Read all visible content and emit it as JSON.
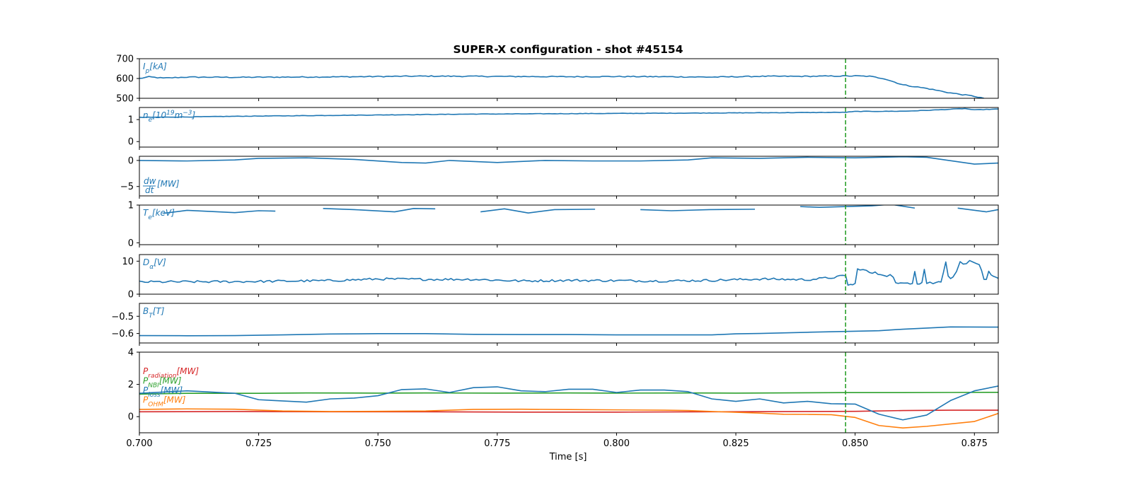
{
  "chart_data": {
    "type": "line",
    "title": "SUPER-X configuration - shot #45154",
    "xlabel": "Time [s]",
    "xlim": [
      0.7,
      0.88
    ],
    "xticks": [
      0.7,
      0.725,
      0.75,
      0.775,
      0.8,
      0.825,
      0.85,
      0.875
    ],
    "xtick_labels": [
      "0.700",
      "0.725",
      "0.750",
      "0.775",
      "0.800",
      "0.825",
      "0.850",
      "0.875"
    ],
    "marker_time": 0.848,
    "marker_color": "#2ca02c",
    "panels": [
      {
        "ylim": [
          500,
          700
        ],
        "yticks": [
          500,
          600,
          700
        ],
        "ytick_labels": [
          "500",
          "600",
          "700"
        ],
        "label": {
          "main": "I",
          "sub": "p",
          "sup": "",
          "rest": "[kA]",
          "color": "#1f77b4"
        },
        "series": [
          {
            "color": "#1f77b4",
            "style": "noisy",
            "noise": 2.5,
            "x": [
              0.7,
              0.702,
              0.705,
              0.71,
              0.72,
              0.73,
              0.74,
              0.75,
              0.76,
              0.77,
              0.78,
              0.79,
              0.8,
              0.81,
              0.82,
              0.83,
              0.84,
              0.845,
              0.85,
              0.853,
              0.856,
              0.86,
              0.865,
              0.87,
              0.875,
              0.877
            ],
            "y": [
              600,
              608,
              602,
              607,
              606,
              607,
              608,
              610,
              612,
              611,
              610,
              609,
              610,
              609,
              607,
              611,
              611,
              612,
              613,
              611,
              600,
              568,
              550,
              527,
              510,
              500
            ]
          }
        ]
      },
      {
        "ylim": [
          -0.25,
          1.55
        ],
        "yticks": [
          0,
          1
        ],
        "ytick_labels": [
          "0",
          "1"
        ],
        "label": {
          "main": "n",
          "sub": "e",
          "sup": "",
          "rest": "[10",
          "rest_sup": "19",
          "rest2": "m",
          "rest2_sup": "−3",
          "rest3": "]",
          "color": "#1f77b4"
        },
        "series": [
          {
            "color": "#1f77b4",
            "style": "noisy",
            "noise": 0.01,
            "x": [
              0.7,
              0.71,
              0.72,
              0.73,
              0.74,
              0.75,
              0.76,
              0.77,
              0.78,
              0.79,
              0.8,
              0.81,
              0.82,
              0.83,
              0.84,
              0.848,
              0.85,
              0.86,
              0.865,
              0.87,
              0.873,
              0.875,
              0.88
            ],
            "y": [
              1.1,
              1.12,
              1.15,
              1.17,
              1.19,
              1.21,
              1.23,
              1.25,
              1.26,
              1.27,
              1.28,
              1.29,
              1.3,
              1.31,
              1.32,
              1.33,
              1.37,
              1.38,
              1.42,
              1.47,
              1.5,
              1.44,
              1.48
            ]
          }
        ]
      },
      {
        "ylim": [
          -6.8,
          0.8
        ],
        "yticks": [
          -5,
          0
        ],
        "ytick_labels": [
          "−5",
          "0"
        ],
        "label": {
          "main": "dW/dt",
          "rest": "[MW]",
          "color": "#1f77b4",
          "fraction": true,
          "num": "dw",
          "den": "dt"
        },
        "series": [
          {
            "color": "#1f77b4",
            "style": "line",
            "x": [
              0.7,
              0.71,
              0.72,
              0.725,
              0.735,
              0.745,
              0.755,
              0.76,
              0.765,
              0.775,
              0.785,
              0.795,
              0.805,
              0.815,
              0.82,
              0.83,
              0.84,
              0.85,
              0.86,
              0.865,
              0.875,
              0.88
            ],
            "y": [
              0.0,
              -0.1,
              0.1,
              0.4,
              0.5,
              0.2,
              -0.4,
              -0.5,
              0.0,
              -0.4,
              0.0,
              -0.1,
              -0.1,
              0.1,
              0.5,
              0.4,
              0.6,
              0.5,
              0.7,
              0.6,
              -0.7,
              -0.5
            ]
          }
        ]
      },
      {
        "ylim": [
          -0.05,
          1.0
        ],
        "yticks": [
          0,
          1
        ],
        "ytick_labels": [
          "0",
          "1"
        ],
        "label": {
          "main": "T",
          "sub": "e",
          "sup": "",
          "rest": "[keV]",
          "color": "#1f77b4"
        },
        "series": [
          {
            "color": "#1f77b4",
            "style": "line",
            "x": [
              0.705,
              0.71,
              0.72,
              0.725,
              0.7285
            ],
            "y": [
              0.78,
              0.86,
              0.8,
              0.85,
              0.84
            ]
          },
          {
            "color": "#1f77b4",
            "style": "line",
            "x": [
              0.7385,
              0.745,
              0.7535,
              0.7575,
              0.762
            ],
            "y": [
              0.91,
              0.88,
              0.82,
              0.91,
              0.9
            ]
          },
          {
            "color": "#1f77b4",
            "style": "line",
            "x": [
              0.7715,
              0.7765,
              0.7815,
              0.787,
              0.7955
            ],
            "y": [
              0.82,
              0.9,
              0.79,
              0.88,
              0.89
            ]
          },
          {
            "color": "#1f77b4",
            "style": "line",
            "x": [
              0.805,
              0.8115,
              0.8195,
              0.829
            ],
            "y": [
              0.88,
              0.85,
              0.88,
              0.89
            ]
          },
          {
            "color": "#1f77b4",
            "style": "line",
            "x": [
              0.8385,
              0.8425,
              0.8535,
              0.8575,
              0.8625
            ],
            "y": [
              0.96,
              0.94,
              0.98,
              1.02,
              0.92
            ]
          },
          {
            "color": "#1f77b4",
            "style": "line",
            "x": [
              0.8715,
              0.8775,
              0.88
            ],
            "y": [
              0.92,
              0.82,
              0.88
            ]
          }
        ]
      },
      {
        "ylim": [
          0,
          12
        ],
        "yticks": [
          0,
          10
        ],
        "ytick_labels": [
          "0",
          "10"
        ],
        "label": {
          "main": "D",
          "sub": "α",
          "sup": "",
          "rest": "[V]",
          "color": "#1f77b4"
        },
        "series": [
          {
            "color": "#1f77b4",
            "style": "noisy",
            "noise": 0.35,
            "x": [
              0.7,
              0.72,
              0.74,
              0.75,
              0.76,
              0.77,
              0.78,
              0.79,
              0.8,
              0.81,
              0.82,
              0.83,
              0.84,
              0.845,
              0.848
            ],
            "y": [
              3.7,
              3.8,
              4.1,
              4.6,
              4.5,
              4.5,
              4.0,
              4.2,
              4.1,
              4.0,
              4.2,
              4.6,
              4.4,
              5.0,
              5.6
            ]
          },
          {
            "color": "#1f77b4",
            "style": "noisy",
            "noise": 0.5,
            "x": [
              0.848,
              0.8485,
              0.849,
              0.85,
              0.8505,
              0.851,
              0.853,
              0.856,
              0.858,
              0.8585,
              0.8595,
              0.861,
              0.862,
              0.8625,
              0.863,
              0.864,
              0.8645,
              0.865,
              0.867,
              0.868,
              0.869,
              0.8695,
              0.8705,
              0.872,
              0.874,
              0.876,
              0.877,
              0.8775,
              0.878,
              0.879,
              0.88
            ],
            "y": [
              5.6,
              3.0,
              2.8,
              3.0,
              7.5,
              7.8,
              6.5,
              6.0,
              5.5,
              3.2,
              3.0,
              3.5,
              3.6,
              7.2,
              3.4,
              3.5,
              7.6,
              3.4,
              3.4,
              4.0,
              10.0,
              5.5,
              4.8,
              9.5,
              9.8,
              9.2,
              4.2,
              4.0,
              6.5,
              5.0,
              4.8
            ]
          }
        ]
      },
      {
        "ylim": [
          -0.655,
          -0.425
        ],
        "yticks": [
          -0.6,
          -0.5
        ],
        "ytick_labels": [
          "−0.6",
          "−0.5"
        ],
        "label": {
          "main": "B",
          "sub": "T",
          "sup": "",
          "rest": "[T]",
          "color": "#1f77b4"
        },
        "series": [
          {
            "color": "#1f77b4",
            "style": "line",
            "x": [
              0.7,
              0.71,
              0.72,
              0.73,
              0.74,
              0.75,
              0.76,
              0.77,
              0.78,
              0.79,
              0.8,
              0.81,
              0.82,
              0.825,
              0.83,
              0.84,
              0.848,
              0.855,
              0.86,
              0.87,
              0.88
            ],
            "y": [
              -0.612,
              -0.613,
              -0.612,
              -0.608,
              -0.603,
              -0.601,
              -0.601,
              -0.605,
              -0.606,
              -0.606,
              -0.608,
              -0.608,
              -0.608,
              -0.602,
              -0.6,
              -0.593,
              -0.588,
              -0.584,
              -0.575,
              -0.562,
              -0.563
            ]
          }
        ]
      },
      {
        "ylim": [
          -1.0,
          4.0
        ],
        "yticks": [
          0,
          2,
          4
        ],
        "ytick_labels": [
          "0",
          "2",
          "4"
        ],
        "labels": [
          {
            "main": "P",
            "sub": "radiation",
            "rest": "[MW]",
            "color": "#d62728"
          },
          {
            "main": "P",
            "sub": "NBI",
            "rest": "[MW]",
            "color": "#2ca02c"
          },
          {
            "main": "P",
            "sub": "loss",
            "rest": "[MW]",
            "color": "#1f77b4"
          },
          {
            "main": "P",
            "sub": "OHM",
            "rest": "[MW]",
            "color": "#ff7f0e"
          }
        ],
        "series": [
          {
            "name": "P_radiation",
            "color": "#d62728",
            "style": "line",
            "x": [
              0.7,
              0.72,
              0.74,
              0.76,
              0.78,
              0.8,
              0.82,
              0.84,
              0.85,
              0.86,
              0.87,
              0.88
            ],
            "y": [
              0.3,
              0.32,
              0.3,
              0.3,
              0.28,
              0.28,
              0.3,
              0.32,
              0.33,
              0.38,
              0.4,
              0.4
            ]
          },
          {
            "name": "P_NBI",
            "color": "#2ca02c",
            "style": "line",
            "x": [
              0.7,
              0.71,
              0.725,
              0.735,
              0.75,
              0.76,
              0.775,
              0.79,
              0.8,
              0.815,
              0.825,
              0.84,
              0.848,
              0.86,
              0.87,
              0.88
            ],
            "y": [
              1.4,
              1.45,
              1.45,
              1.47,
              1.46,
              1.47,
              1.46,
              1.47,
              1.46,
              1.47,
              1.46,
              1.48,
              1.49,
              1.49,
              1.5,
              1.51
            ]
          },
          {
            "name": "P_loss",
            "color": "#1f77b4",
            "style": "line",
            "x": [
              0.7,
              0.71,
              0.72,
              0.725,
              0.735,
              0.74,
              0.745,
              0.75,
              0.755,
              0.76,
              0.765,
              0.77,
              0.775,
              0.78,
              0.785,
              0.79,
              0.795,
              0.8,
              0.805,
              0.81,
              0.815,
              0.82,
              0.825,
              0.83,
              0.835,
              0.84,
              0.845,
              0.85,
              0.855,
              0.86,
              0.865,
              0.87,
              0.875,
              0.88
            ],
            "y": [
              1.45,
              1.6,
              1.45,
              1.05,
              0.9,
              1.1,
              1.15,
              1.3,
              1.68,
              1.72,
              1.5,
              1.8,
              1.85,
              1.6,
              1.55,
              1.7,
              1.7,
              1.5,
              1.65,
              1.65,
              1.55,
              1.1,
              0.95,
              1.1,
              0.85,
              0.95,
              0.8,
              0.78,
              0.15,
              -0.2,
              0.1,
              1.0,
              1.6,
              1.9
            ]
          },
          {
            "name": "P_OHM",
            "color": "#ff7f0e",
            "style": "line",
            "x": [
              0.7,
              0.71,
              0.72,
              0.73,
              0.74,
              0.75,
              0.76,
              0.77,
              0.78,
              0.79,
              0.8,
              0.81,
              0.815,
              0.82,
              0.83,
              0.835,
              0.84,
              0.845,
              0.85,
              0.855,
              0.86,
              0.865,
              0.875,
              0.88
            ],
            "y": [
              0.45,
              0.48,
              0.46,
              0.35,
              0.32,
              0.33,
              0.35,
              0.45,
              0.46,
              0.44,
              0.42,
              0.4,
              0.38,
              0.32,
              0.22,
              0.15,
              0.14,
              0.12,
              -0.05,
              -0.55,
              -0.7,
              -0.6,
              -0.3,
              0.2
            ]
          }
        ]
      }
    ]
  }
}
